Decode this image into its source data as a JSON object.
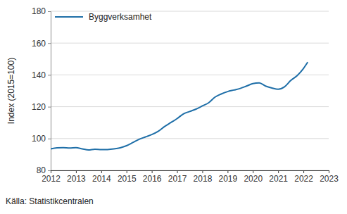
{
  "chart_data": {
    "type": "line",
    "y_label": "Index (2015=100)",
    "source": "Källa: Statistikcentralen",
    "legend": "upper left",
    "grid": true,
    "x": [
      2012,
      2012.25,
      2012.5,
      2012.75,
      2013,
      2013.25,
      2013.5,
      2013.75,
      2014,
      2014.25,
      2014.5,
      2014.75,
      2015,
      2015.25,
      2015.5,
      2015.75,
      2016,
      2016.25,
      2016.5,
      2016.75,
      2017,
      2017.25,
      2017.5,
      2017.75,
      2018,
      2018.25,
      2018.5,
      2018.75,
      2019,
      2019.25,
      2019.5,
      2019.75,
      2020,
      2020.25,
      2020.5,
      2020.75,
      2021,
      2021.25,
      2021.5,
      2021.75,
      2022,
      2022.17
    ],
    "series": [
      {
        "name": "Byggverksamhet",
        "color": "#1f6fa8",
        "values": [
          93.5,
          94.2,
          94.3,
          94.0,
          94.3,
          93.5,
          92.8,
          93.3,
          93.0,
          93.1,
          93.5,
          94.2,
          95.5,
          97.5,
          99.5,
          101.0,
          102.5,
          104.5,
          107.5,
          110.0,
          112.5,
          115.5,
          117.0,
          118.5,
          120.5,
          122.5,
          126.0,
          128.0,
          129.5,
          130.5,
          131.5,
          133.0,
          134.5,
          135.0,
          133.0,
          131.8,
          131.0,
          132.5,
          136.5,
          139.5,
          144.0,
          148.0
        ]
      }
    ],
    "xlim": [
      2012,
      2023
    ],
    "xticks": [
      2012,
      2013,
      2014,
      2015,
      2016,
      2017,
      2018,
      2019,
      2020,
      2021,
      2022,
      2023
    ],
    "ylim": [
      80,
      180
    ],
    "yticks": [
      80,
      100,
      120,
      140,
      160,
      180
    ]
  }
}
